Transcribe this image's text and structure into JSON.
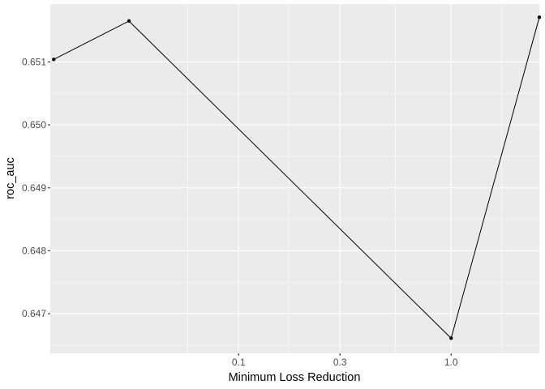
{
  "chart_data": {
    "type": "line",
    "title": "",
    "xlabel": "Minimum Loss Reduction",
    "ylabel": "roc_auc",
    "x_scale": "log10",
    "xlim": [
      0.013,
      2.6
    ],
    "ylim": [
      0.64637,
      0.65192
    ],
    "x_ticks": [
      0.1,
      0.3,
      1.0
    ],
    "x_tick_labels": [
      "0.1",
      "0.3",
      "1.0"
    ],
    "y_ticks": [
      0.647,
      0.648,
      0.649,
      0.65,
      0.651
    ],
    "y_tick_labels": [
      "0.647",
      "0.648",
      "0.649",
      "0.650",
      "0.651"
    ],
    "grid": true,
    "legend": "none",
    "series": [
      {
        "color": "#000000",
        "points": [
          {
            "x": 0.0135,
            "y": 0.65104
          },
          {
            "x": 0.0305,
            "y": 0.65165
          },
          {
            "x": 1.0,
            "y": 0.64661
          },
          {
            "x": 2.6,
            "y": 0.65171
          }
        ]
      }
    ]
  }
}
